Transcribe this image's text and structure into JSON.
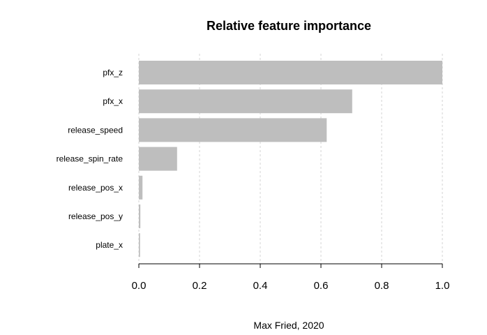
{
  "chart_data": {
    "type": "bar",
    "orientation": "horizontal",
    "title": "Relative feature importance",
    "caption": "Max Fried, 2020",
    "xlabel": "",
    "ylabel": "",
    "categories": [
      "pfx_z",
      "pfx_x",
      "release_speed",
      "release_spin_rate",
      "release_pos_x",
      "release_pos_y",
      "plate_x"
    ],
    "values": [
      1.0,
      0.703,
      0.619,
      0.126,
      0.012,
      0.005,
      0.004
    ],
    "xlim": [
      0.0,
      1.0
    ],
    "xticks": [
      "0.0",
      "0.2",
      "0.4",
      "0.6",
      "0.8",
      "1.0"
    ],
    "grid": "vertical dashed",
    "legend": "none",
    "colors": {
      "bar": "#bebebe",
      "grid": "#d3d3d3",
      "axis": "#000000"
    }
  }
}
